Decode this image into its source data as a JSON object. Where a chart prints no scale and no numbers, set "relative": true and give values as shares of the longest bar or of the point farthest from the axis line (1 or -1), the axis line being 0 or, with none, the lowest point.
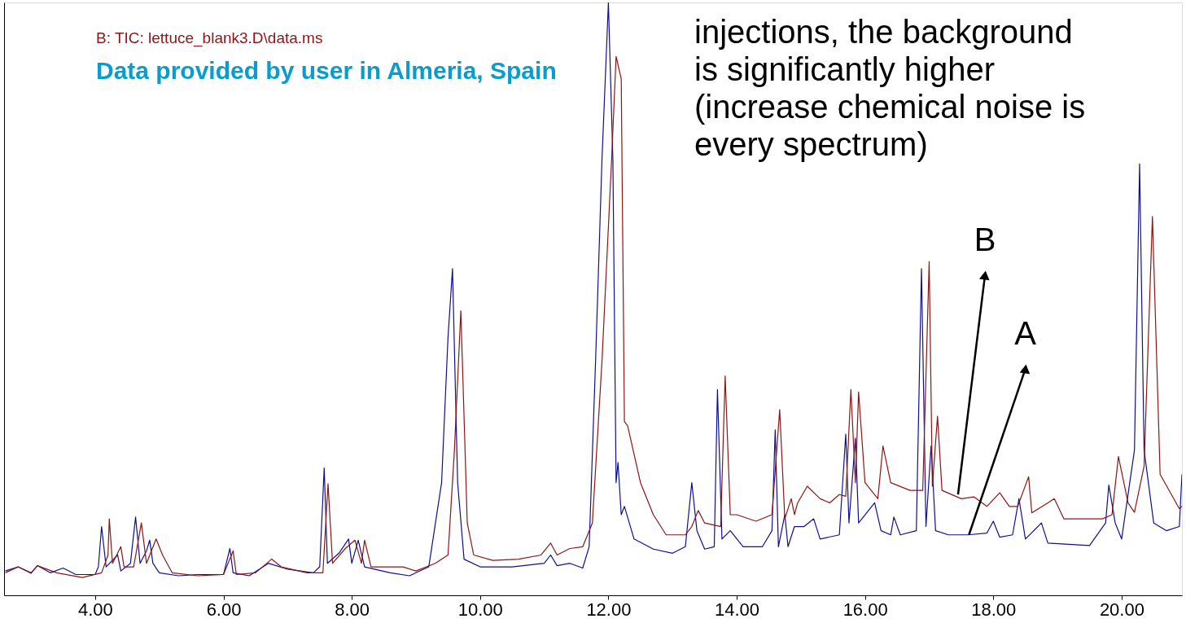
{
  "chart_data": {
    "type": "line",
    "relative": true,
    "grid": false,
    "xlim": [
      2.58,
      20.94
    ],
    "xticks": [
      {
        "value": 4,
        "label": "4.00"
      },
      {
        "value": 6,
        "label": "6.00"
      },
      {
        "value": 8,
        "label": "8.00"
      },
      {
        "value": 10,
        "label": "10.00"
      },
      {
        "value": 12,
        "label": "12.00"
      },
      {
        "value": 14,
        "label": "14.00"
      },
      {
        "value": 16,
        "label": "16.00"
      },
      {
        "value": 18,
        "label": "18.00"
      },
      {
        "value": 20,
        "label": "20.00"
      }
    ],
    "series": [
      {
        "color": "#10108f",
        "x": [
          2.6,
          2.8,
          3.0,
          3.1,
          3.3,
          3.5,
          3.7,
          4.0,
          4.05,
          4.1,
          4.17,
          4.35,
          4.4,
          4.55,
          4.63,
          4.7,
          4.8,
          4.85,
          4.9,
          5.0,
          5.3,
          5.6,
          6.0,
          6.1,
          6.15,
          6.4,
          6.7,
          7.0,
          7.4,
          7.5,
          7.57,
          7.62,
          7.8,
          7.95,
          8.0,
          8.1,
          8.2,
          8.6,
          8.9,
          9.2,
          9.4,
          9.5,
          9.57,
          9.65,
          9.75,
          10.0,
          10.5,
          11.0,
          11.1,
          11.2,
          11.4,
          11.6,
          11.7,
          11.8,
          11.9,
          12.0,
          12.07,
          12.12,
          12.15,
          12.2,
          12.25,
          12.4,
          12.7,
          13.0,
          13.2,
          13.3,
          13.38,
          13.5,
          13.65,
          13.7,
          13.77,
          13.9,
          14.1,
          14.4,
          14.55,
          14.6,
          14.65,
          14.75,
          14.8,
          14.9,
          15.05,
          15.2,
          15.3,
          15.6,
          15.7,
          15.75,
          15.85,
          15.9,
          16.15,
          16.25,
          16.4,
          16.45,
          16.55,
          16.8,
          16.88,
          16.95,
          17.03,
          17.1,
          17.3,
          17.6,
          17.9,
          18.0,
          18.1,
          18.3,
          18.4,
          18.5,
          18.75,
          18.85,
          19.5,
          19.75,
          19.8,
          19.9,
          20.0,
          20.2,
          20.28,
          20.35,
          20.5,
          20.7,
          20.9,
          20.94
        ],
        "values": [
          0.041,
          0.048,
          0.038,
          0.05,
          0.038,
          0.046,
          0.035,
          0.035,
          0.048,
          0.116,
          0.048,
          0.068,
          0.041,
          0.054,
          0.132,
          0.054,
          0.075,
          0.093,
          0.054,
          0.038,
          0.033,
          0.035,
          0.035,
          0.079,
          0.038,
          0.033,
          0.054,
          0.044,
          0.038,
          0.048,
          0.215,
          0.054,
          0.071,
          0.095,
          0.054,
          0.093,
          0.048,
          0.038,
          0.033,
          0.048,
          0.19,
          0.435,
          0.551,
          0.19,
          0.061,
          0.048,
          0.048,
          0.054,
          0.068,
          0.05,
          0.054,
          0.046,
          0.082,
          0.395,
          0.735,
          1.0,
          0.735,
          0.19,
          0.224,
          0.136,
          0.15,
          0.095,
          0.078,
          0.071,
          0.082,
          0.19,
          0.109,
          0.078,
          0.082,
          0.347,
          0.095,
          0.109,
          0.082,
          0.082,
          0.109,
          0.279,
          0.082,
          0.136,
          0.082,
          0.116,
          0.116,
          0.129,
          0.095,
          0.102,
          0.272,
          0.122,
          0.265,
          0.122,
          0.156,
          0.109,
          0.102,
          0.132,
          0.102,
          0.109,
          0.551,
          0.116,
          0.252,
          0.109,
          0.102,
          0.102,
          0.105,
          0.125,
          0.098,
          0.102,
          0.163,
          0.095,
          0.122,
          0.088,
          0.084,
          0.122,
          0.186,
          0.122,
          0.095,
          0.245,
          0.728,
          0.245,
          0.122,
          0.109,
          0.116,
          0.204
        ]
      },
      {
        "name": "B: TIC: lettuce_blank3.D\\data.ms",
        "color": "#8c1616",
        "x": [
          2.6,
          2.8,
          3.0,
          3.1,
          3.4,
          3.8,
          4.1,
          4.2,
          4.22,
          4.27,
          4.4,
          4.45,
          4.6,
          4.72,
          4.8,
          4.95,
          5.05,
          5.2,
          5.6,
          6.0,
          6.15,
          6.2,
          6.5,
          6.75,
          6.9,
          7.3,
          7.55,
          7.63,
          7.7,
          7.9,
          8.05,
          8.15,
          8.2,
          8.3,
          8.8,
          9.0,
          9.3,
          9.5,
          9.6,
          9.7,
          9.8,
          9.9,
          10.2,
          10.6,
          10.95,
          11.1,
          11.2,
          11.4,
          11.6,
          11.75,
          11.9,
          12.05,
          12.12,
          12.2,
          12.25,
          12.3,
          12.5,
          12.7,
          12.9,
          13.2,
          13.3,
          13.4,
          13.5,
          13.75,
          13.82,
          13.9,
          14.0,
          14.3,
          14.55,
          14.67,
          14.75,
          14.85,
          14.9,
          14.95,
          15.1,
          15.3,
          15.45,
          15.6,
          15.7,
          15.78,
          15.85,
          15.9,
          16.0,
          16.2,
          16.28,
          16.4,
          16.7,
          16.9,
          17.0,
          17.05,
          17.13,
          17.2,
          17.5,
          17.7,
          17.9,
          18.1,
          18.25,
          18.38,
          18.55,
          18.6,
          18.85,
          18.95,
          19.1,
          19.7,
          19.85,
          19.95,
          20.1,
          20.2,
          20.35,
          20.48,
          20.6,
          20.9,
          20.94
        ],
        "values": [
          0.038,
          0.048,
          0.037,
          0.05,
          0.038,
          0.03,
          0.038,
          0.068,
          0.129,
          0.054,
          0.082,
          0.048,
          0.048,
          0.122,
          0.054,
          0.095,
          0.068,
          0.038,
          0.033,
          0.035,
          0.075,
          0.035,
          0.038,
          0.061,
          0.048,
          0.038,
          0.038,
          0.188,
          0.054,
          0.079,
          0.093,
          0.054,
          0.093,
          0.048,
          0.048,
          0.041,
          0.054,
          0.068,
          0.245,
          0.48,
          0.122,
          0.068,
          0.059,
          0.061,
          0.068,
          0.088,
          0.068,
          0.079,
          0.082,
          0.122,
          0.395,
          0.735,
          0.909,
          0.871,
          0.293,
          0.286,
          0.19,
          0.136,
          0.102,
          0.102,
          0.116,
          0.143,
          0.122,
          0.116,
          0.37,
          0.136,
          0.136,
          0.125,
          0.136,
          0.313,
          0.129,
          0.163,
          0.136,
          0.156,
          0.184,
          0.163,
          0.156,
          0.17,
          0.167,
          0.347,
          0.19,
          0.343,
          0.19,
          0.163,
          0.252,
          0.19,
          0.177,
          0.177,
          0.563,
          0.184,
          0.302,
          0.177,
          0.163,
          0.166,
          0.15,
          0.173,
          0.15,
          0.15,
          0.2,
          0.139,
          0.156,
          0.163,
          0.129,
          0.129,
          0.136,
          0.234,
          0.156,
          0.14,
          0.218,
          0.639,
          0.204,
          0.146,
          0.15
        ]
      }
    ],
    "annotations": [
      {
        "text": "B",
        "x": 17.45,
        "y": 0.17
      },
      {
        "text": "A",
        "x": 17.62,
        "y": 0.102
      },
      "Data provided by user in Almeria, Spain",
      "injections, the background",
      "is significantly higher",
      "(increase chemical noise is",
      "every spectrum)"
    ]
  }
}
